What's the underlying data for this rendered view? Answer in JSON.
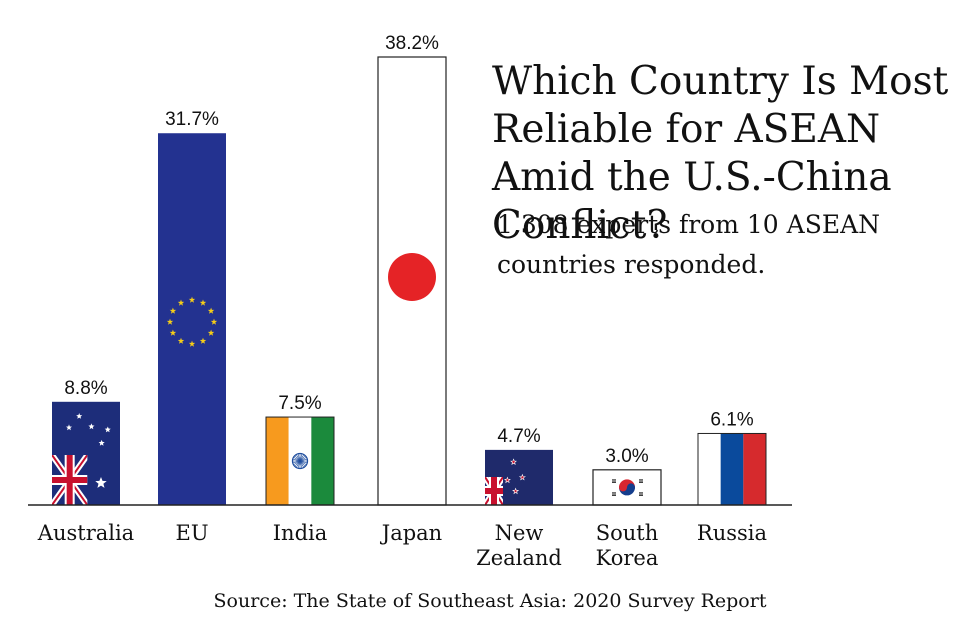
{
  "title": "Which Country Is Most Reliable for ASEAN Amid the U.S.-China Conflict?",
  "subtitle": "1,308 experts from 10 ASEAN countries responded.",
  "source": "Source: The State of Southeast Asia: 2020 Survey Report",
  "chart_data": {
    "type": "bar",
    "categories": [
      "Australia",
      "EU",
      "India",
      "Japan",
      "New Zealand",
      "South Korea",
      "Russia"
    ],
    "category_lines": [
      [
        "Australia"
      ],
      [
        "EU"
      ],
      [
        "India"
      ],
      [
        "Japan"
      ],
      [
        "New",
        "Zealand"
      ],
      [
        "South",
        "Korea"
      ],
      [
        "Russia"
      ]
    ],
    "values": [
      8.8,
      31.7,
      7.5,
      38.2,
      4.7,
      3.0,
      6.1
    ],
    "value_labels": [
      "8.8%",
      "31.7%",
      "7.5%",
      "38.2%",
      "4.7%",
      "3.0%",
      "6.1%"
    ],
    "bar_styles": [
      "flag-australia",
      "flag-eu",
      "flag-india",
      "flag-japan",
      "flag-new-zealand",
      "flag-south-korea",
      "flag-russia"
    ],
    "ylim": [
      0,
      38.2
    ],
    "grid": false,
    "legend": "none"
  },
  "colors": {
    "australia_blue": "#1d2d7a",
    "eu_blue": "#233290",
    "eu_star": "#f6cd17",
    "india_saffron": "#f79a1e",
    "india_green": "#1b8a3c",
    "india_chakra": "#1f4e9e",
    "japan_red": "#e52326",
    "nz_blue": "#1f2a6b",
    "korea_red": "#d72630",
    "korea_blue": "#143d8c",
    "russia_blue": "#0a4a9c",
    "russia_red": "#d62a2d",
    "union_red": "#c8102e",
    "axis": "#222222"
  }
}
